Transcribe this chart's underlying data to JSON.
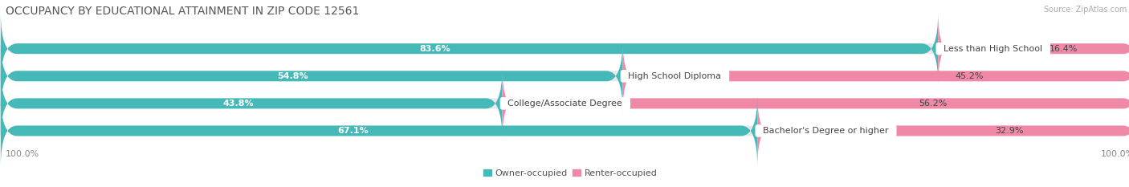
{
  "title": "OCCUPANCY BY EDUCATIONAL ATTAINMENT IN ZIP CODE 12561",
  "source": "Source: ZipAtlas.com",
  "categories": [
    "Less than High School",
    "High School Diploma",
    "College/Associate Degree",
    "Bachelor's Degree or higher"
  ],
  "owner_pct": [
    83.6,
    54.8,
    43.8,
    67.1
  ],
  "renter_pct": [
    16.4,
    45.2,
    56.2,
    32.9
  ],
  "owner_color": "#45B8B8",
  "renter_color": "#F088A8",
  "bg_color": "#ffffff",
  "bar_bg_color": "#e8e8e8",
  "bar_height": 0.38,
  "title_fontsize": 10,
  "label_fontsize": 8,
  "pct_fontsize": 8,
  "tick_fontsize": 8,
  "source_fontsize": 7,
  "legend_fontsize": 8
}
